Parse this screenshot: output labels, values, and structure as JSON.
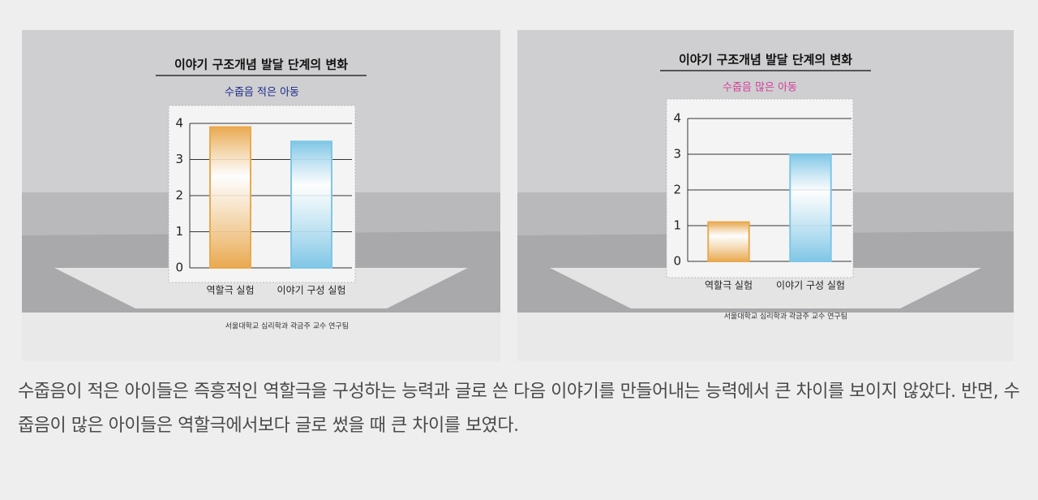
{
  "chart_data": [
    {
      "type": "bar",
      "title": "이야기 구조개념 발달 단계의 변화",
      "subtitle": "수줍음 적은 아동",
      "categories": [
        "역할극 실험",
        "이야기 구성 실험"
      ],
      "values": [
        3.9,
        3.5
      ],
      "colors": [
        "#e9a94f",
        "#7fc6e6"
      ],
      "ylim": [
        0,
        4
      ],
      "yticks": [
        0,
        1,
        2,
        3,
        4
      ],
      "grid": true,
      "source": "서울대학교 심리학과 곽금주 교수 연구팀"
    },
    {
      "type": "bar",
      "title": "이야기 구조개념 발달 단계의 변화",
      "subtitle": "수줍음 많은 아동",
      "categories": [
        "역할극 실험",
        "이야기 구성 실험"
      ],
      "values": [
        1.1,
        3.0
      ],
      "colors": [
        "#e9a94f",
        "#7fc6e6"
      ],
      "ylim": [
        0,
        4
      ],
      "yticks": [
        0,
        1,
        2,
        3,
        4
      ],
      "grid": true,
      "source": "서울대학교 심리학과 곽금주 교수 연구팀"
    }
  ],
  "caption": "수줍음이 적은 아이들은 즉흥적인 역할극을 구성하는 능력과 글로 쓴 다음 이야기를 만들어내는 능력에서 큰 차이를 보이지 않았다. 반면, 수줍음이 많은 아이들은 역할극에서보다 글로 썼을 때 큰 차이를 보였다."
}
